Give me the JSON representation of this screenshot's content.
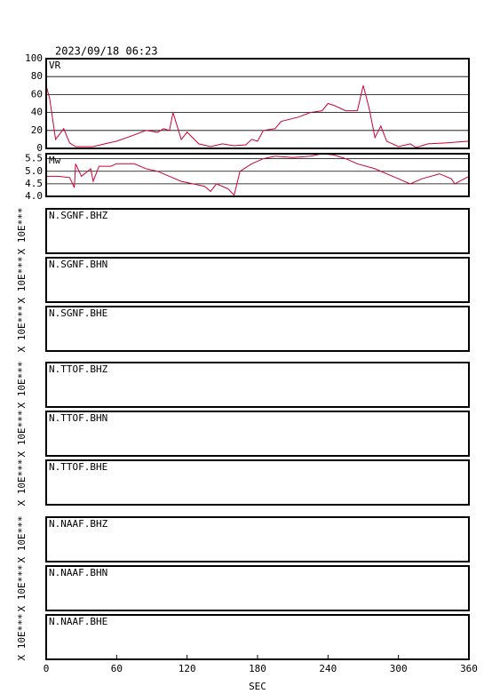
{
  "chart_data": {
    "type": "line",
    "title": "2023/09/18 06:23",
    "xlabel": "SEC",
    "xlim": [
      0,
      360
    ],
    "xticks": [
      0,
      60,
      120,
      180,
      240,
      300,
      360
    ],
    "color": "#cc0033",
    "panels": [
      {
        "label": "VR",
        "ylim": [
          0,
          100
        ],
        "yticks": [
          0,
          20,
          40,
          60,
          80,
          100
        ],
        "grid": true,
        "x": [
          0,
          3,
          8,
          15,
          20,
          25,
          40,
          50,
          60,
          75,
          85,
          95,
          100,
          105,
          108,
          115,
          120,
          130,
          140,
          150,
          160,
          170,
          175,
          180,
          185,
          195,
          200,
          215,
          225,
          235,
          240,
          245,
          255,
          265,
          270,
          275,
          280,
          285,
          290,
          300,
          310,
          315,
          325,
          340,
          360
        ],
        "values": [
          70,
          55,
          10,
          22,
          6,
          2,
          2,
          5,
          8,
          15,
          20,
          18,
          22,
          20,
          40,
          10,
          18,
          5,
          2,
          5,
          3,
          4,
          10,
          8,
          20,
          22,
          30,
          35,
          40,
          42,
          50,
          48,
          42,
          42,
          70,
          45,
          12,
          25,
          8,
          2,
          5,
          1,
          5,
          6,
          8
        ]
      },
      {
        "label": "Mw",
        "ylim": [
          4,
          5.7
        ],
        "yticks": [
          {
            "value": 4,
            "label": "4.0"
          },
          4.5,
          {
            "value": 5,
            "label": "5.0"
          },
          5.5
        ],
        "grid": true,
        "x": [
          0,
          10,
          20,
          24,
          25,
          30,
          38,
          40,
          45,
          55,
          60,
          75,
          85,
          95,
          105,
          115,
          125,
          135,
          140,
          145,
          155,
          160,
          165,
          175,
          185,
          195,
          210,
          225,
          235,
          245,
          255,
          265,
          280,
          290,
          300,
          310,
          320,
          335,
          345,
          348,
          360
        ],
        "values": [
          4.8,
          4.8,
          4.75,
          4.35,
          5.3,
          4.8,
          5.1,
          4.6,
          5.2,
          5.2,
          5.3,
          5.3,
          5.1,
          5.0,
          4.8,
          4.6,
          4.5,
          4.4,
          4.2,
          4.5,
          4.3,
          4.05,
          5.0,
          5.3,
          5.5,
          5.6,
          5.55,
          5.6,
          5.7,
          5.65,
          5.5,
          5.3,
          5.1,
          4.9,
          4.7,
          4.5,
          4.7,
          4.9,
          4.7,
          4.5,
          4.8
        ]
      },
      {
        "label": "N.SGNF.BHZ",
        "ylabel": "X 10E***"
      },
      {
        "label": "N.SGNF.BHN",
        "ylabel": "X 10E***"
      },
      {
        "label": "N.SGNF.BHE",
        "ylabel": "X 10E***"
      },
      {
        "label": "N.TTOF.BHZ",
        "ylabel": "X 10E***"
      },
      {
        "label": "N.TTOF.BHN",
        "ylabel": "X 10E***"
      },
      {
        "label": "N.TTOF.BHE",
        "ylabel": "X 10E***"
      },
      {
        "label": "N.NAAF.BHZ",
        "ylabel": "X 10E***"
      },
      {
        "label": "N.NAAF.BHN",
        "ylabel": "X 10E***"
      },
      {
        "label": "N.NAAF.BHE",
        "ylabel": "X 10E***"
      }
    ]
  }
}
